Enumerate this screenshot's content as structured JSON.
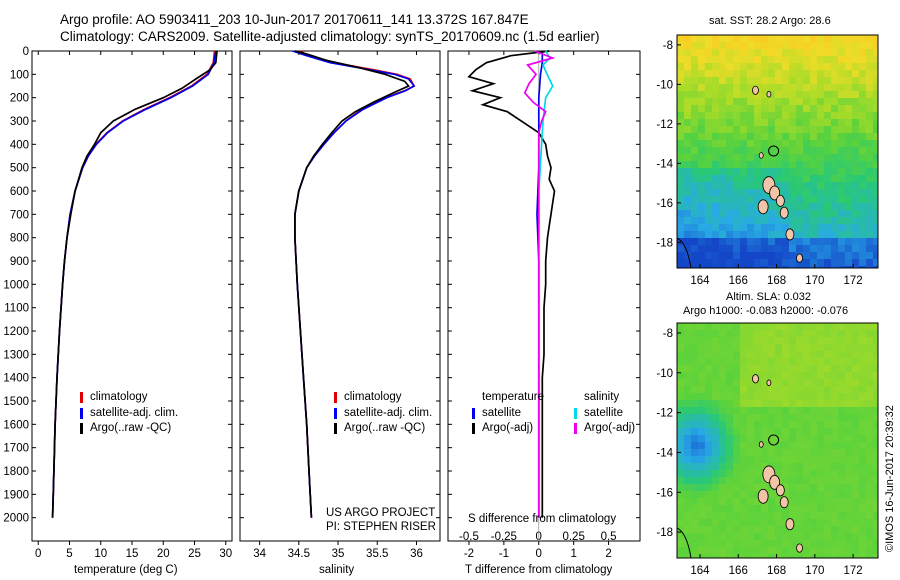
{
  "title_line1": "Argo profile: AO 5903411_203 10-Jun-2017 20170611_141 13.372S 167.847E",
  "title_line2": "Climatology: CARS2009. Satellite-adjusted climatology: synTS_20170609.nc (1.5d earlier)",
  "colors": {
    "climatology": "#e00000",
    "satellite_adj": "#0000ee",
    "argo": "#000000",
    "salinity_satellite": "#00d8e8",
    "salinity_argo": "#ee00ee"
  },
  "chart_data": [
    {
      "type": "line",
      "xlabel": "temperature (deg C)",
      "ylabel": "",
      "xlim": [
        -1,
        31
      ],
      "ylim": [
        2100,
        0
      ],
      "y_inverted": true,
      "xticks": [
        "0",
        "5",
        "10",
        "15",
        "20",
        "25",
        "30"
      ],
      "yticks": [
        "0",
        "100",
        "200",
        "300",
        "400",
        "500",
        "600",
        "700",
        "800",
        "900",
        "1000",
        "1100",
        "1200",
        "1300",
        "1400",
        "1500",
        "1600",
        "1700",
        "1800",
        "1900",
        "2000"
      ],
      "legend": [
        "climatology",
        "satellite-adj. clim.",
        "Argo(..raw -QC)"
      ],
      "legend_position": "lower-left",
      "series": [
        {
          "name": "climatology",
          "y": [
            0,
            50,
            100,
            150,
            200,
            250,
            300,
            350,
            400,
            450,
            500,
            600,
            700,
            800,
            900,
            1000,
            1200,
            1400,
            1600,
            1800,
            2000
          ],
          "x": [
            28.2,
            28.0,
            27.0,
            24.5,
            21.0,
            17.0,
            13.5,
            11.0,
            9.2,
            8.0,
            7.1,
            5.9,
            5.1,
            4.6,
            4.2,
            3.9,
            3.4,
            3.0,
            2.7,
            2.5,
            2.3
          ]
        },
        {
          "name": "satellite-adj. clim.",
          "y": [
            0,
            50,
            100,
            150,
            200,
            250,
            300,
            350,
            400,
            450,
            500,
            600,
            700,
            800,
            900,
            1000,
            1200,
            1400,
            1600,
            1800,
            2000
          ],
          "x": [
            28.4,
            28.1,
            27.2,
            24.7,
            21.2,
            17.2,
            13.6,
            11.1,
            9.3,
            8.0,
            7.1,
            5.9,
            5.1,
            4.6,
            4.2,
            3.9,
            3.4,
            3.0,
            2.7,
            2.5,
            2.3
          ]
        },
        {
          "name": "Argo(..raw -QC)",
          "y": [
            0,
            50,
            80,
            120,
            160,
            200,
            250,
            300,
            350,
            400,
            450,
            500,
            600,
            700,
            800,
            900,
            1000,
            1200,
            1400,
            1600,
            1800,
            2000
          ],
          "x": [
            28.6,
            28.4,
            27.5,
            25.2,
            23.0,
            20.0,
            15.5,
            12.0,
            10.0,
            9.0,
            7.8,
            7.0,
            5.9,
            5.2,
            4.6,
            4.2,
            3.9,
            3.4,
            3.0,
            2.7,
            2.5,
            2.3
          ]
        }
      ]
    },
    {
      "type": "line",
      "xlabel": "salinity",
      "xlim": [
        33.75,
        36.3
      ],
      "ylim": [
        2100,
        0
      ],
      "y_inverted": true,
      "xticks": [
        "34",
        "34.5",
        "35",
        "35.5",
        "36"
      ],
      "legend": [
        "climatology",
        "satellite-adj. clim.",
        "Argo(..raw -QC)"
      ],
      "legend_position": "lower-right",
      "series": [
        {
          "name": "climatology",
          "y": [
            0,
            20,
            50,
            80,
            100,
            120,
            150,
            170,
            200,
            250,
            300,
            350,
            400,
            450,
            500,
            600,
            700,
            800,
            1000,
            1200,
            1400,
            1600,
            1800,
            2000
          ],
          "x": [
            34.5,
            34.65,
            34.95,
            35.45,
            35.75,
            35.92,
            35.97,
            35.85,
            35.6,
            35.3,
            35.1,
            34.95,
            34.82,
            34.7,
            34.6,
            34.5,
            34.45,
            34.45,
            34.48,
            34.52,
            34.56,
            34.6,
            34.63,
            34.66
          ]
        },
        {
          "name": "satellite-adj. clim.",
          "y": [
            0,
            20,
            50,
            80,
            100,
            120,
            150,
            170,
            200,
            250,
            300,
            350,
            400,
            450,
            500,
            600,
            700,
            800,
            1000,
            1200,
            1400,
            1600,
            1800,
            2000
          ],
          "x": [
            34.42,
            34.6,
            34.9,
            35.4,
            35.72,
            35.9,
            35.97,
            35.86,
            35.62,
            35.32,
            35.1,
            34.95,
            34.82,
            34.7,
            34.6,
            34.5,
            34.45,
            34.45,
            34.48,
            34.52,
            34.56,
            34.6,
            34.63,
            34.66
          ]
        },
        {
          "name": "Argo(..raw -QC)",
          "y": [
            0,
            15,
            40,
            70,
            100,
            130,
            150,
            180,
            220,
            260,
            300,
            350,
            400,
            450,
            500,
            600,
            700,
            800,
            1000,
            1200,
            1400,
            1600,
            1800,
            2000
          ],
          "x": [
            34.45,
            34.62,
            34.85,
            35.25,
            35.6,
            35.85,
            35.9,
            35.7,
            35.45,
            35.22,
            35.05,
            34.92,
            34.8,
            34.69,
            34.6,
            34.5,
            34.45,
            34.45,
            34.48,
            34.52,
            34.56,
            34.6,
            34.63,
            34.66
          ]
        }
      ]
    },
    {
      "type": "line",
      "xlabel": "T difference from climatology",
      "x2label": "S difference from climatology",
      "xlim": [
        -2.6,
        2.9
      ],
      "x2lim": [
        -0.65,
        0.725
      ],
      "ylim": [
        2100,
        0
      ],
      "y_inverted": true,
      "xticks": [
        "-2",
        "-1",
        "0",
        "1",
        "2"
      ],
      "x2ticks": [
        "-0.5",
        "-0.25",
        "0",
        "0.25",
        "0.5"
      ],
      "legend_headers": [
        "temperature",
        "salinity"
      ],
      "legend": [
        "satellite",
        "Argo(-adj)",
        "satellite",
        "Argo(-adj)"
      ],
      "legend_position": "lower",
      "series": [
        {
          "name": "satellite",
          "kind": "temperature",
          "y": [
            0,
            50,
            100,
            200,
            300,
            400,
            500,
            700,
            900,
            1200,
            1500,
            1800,
            2000
          ],
          "x": [
            0.1,
            0.1,
            0.05,
            0.0,
            0.0,
            0.0,
            0.0,
            -0.05,
            0.0,
            0.0,
            0.0,
            0.0,
            0.0
          ]
        },
        {
          "name": "Argo(-adj)",
          "kind": "temperature",
          "y": [
            0,
            20,
            50,
            80,
            110,
            140,
            170,
            200,
            230,
            260,
            290,
            320,
            350,
            400,
            450,
            500,
            550,
            600,
            650,
            700,
            750,
            800,
            900,
            1000,
            1100,
            1200,
            1300,
            1400,
            1500,
            1600,
            1700,
            1800,
            1900,
            2000
          ],
          "x": [
            0.3,
            -0.8,
            -1.5,
            -1.8,
            -2.0,
            -1.3,
            -1.9,
            -1.1,
            -1.6,
            -0.9,
            -0.6,
            -0.3,
            0.0,
            0.2,
            0.25,
            0.35,
            0.3,
            0.45,
            0.4,
            0.35,
            0.3,
            0.25,
            0.2,
            0.2,
            0.15,
            0.15,
            0.15,
            0.1,
            0.1,
            0.1,
            0.1,
            0.1,
            0.1,
            0.1
          ]
        },
        {
          "name": "satellite",
          "kind": "salinity",
          "y": [
            0,
            30,
            60,
            100,
            150,
            200,
            300,
            400,
            600,
            800,
            1000,
            1400,
            1800,
            2000
          ],
          "x": [
            0.05,
            0.08,
            0.03,
            0.06,
            0.1,
            0.05,
            0.03,
            0.02,
            0.0,
            0.0,
            0.0,
            0.0,
            0.0,
            0.0
          ]
        },
        {
          "name": "Argo(-adj)",
          "kind": "salinity",
          "y": [
            0,
            30,
            60,
            100,
            140,
            180,
            220,
            260,
            300,
            350,
            400,
            500,
            700,
            1000,
            1400,
            1800,
            2000
          ],
          "x": [
            -0.03,
            0.1,
            -0.08,
            -0.02,
            -0.07,
            -0.1,
            -0.04,
            0.05,
            0.02,
            0.0,
            0.0,
            0.0,
            0.0,
            0.0,
            0.0,
            0.0,
            0.0
          ]
        }
      ]
    }
  ],
  "legend_left": [
    {
      "label": "climatology",
      "color": "#e00000"
    },
    {
      "label": "satellite-adj. clim.",
      "color": "#0000ee"
    },
    {
      "label": "Argo(..raw -QC)",
      "color": "#000000"
    }
  ],
  "legend_middle": [
    {
      "label": "climatology",
      "color": "#e00000"
    },
    {
      "label": "satellite-adj. clim.",
      "color": "#0000ee"
    },
    {
      "label": "Argo(..raw -QC)",
      "color": "#000000"
    }
  ],
  "legend_diff": {
    "temp_header": "temperature",
    "sal_header": "salinity",
    "temp_items": [
      {
        "label": "satellite",
        "color": "#0000ee"
      },
      {
        "label": "Argo(-adj)",
        "color": "#000000"
      }
    ],
    "sal_items": [
      {
        "label": "satellite",
        "color": "#00d8e8"
      },
      {
        "label": "Argo(-adj)",
        "color": "#ee00ee"
      }
    ]
  },
  "credit": {
    "line1": "US ARGO PROJECT",
    "line2": "PI: STEPHEN RISER"
  },
  "maps": {
    "sst": {
      "title": "sat. SST: 28.2 Argo: 28.6"
    },
    "sla": {
      "title1": "Altim. SLA: 0.032",
      "title2": "Argo h1000: -0.083 h2000: -0.076"
    },
    "xticks": [
      "164",
      "166",
      "168",
      "170",
      "172"
    ],
    "yticks": [
      "-8",
      "-10",
      "-12",
      "-14",
      "-16",
      "-18"
    ],
    "xlim": [
      162.8,
      173.3
    ],
    "ylim": [
      -19.3,
      -7.5
    ],
    "profile_location": {
      "lon": 167.847,
      "lat": -13.372
    }
  },
  "stamp": "©IMOS 16-Jun-2017 20:39:32"
}
